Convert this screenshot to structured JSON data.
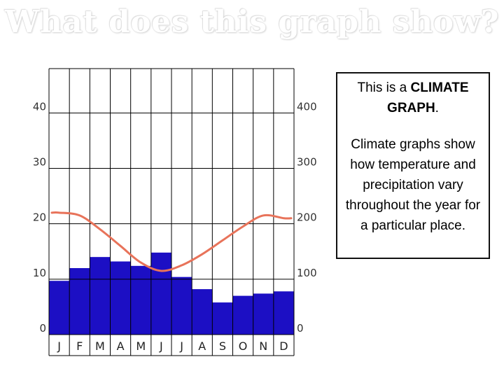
{
  "slide": {
    "title": "What does this graph show?"
  },
  "info_box": {
    "line1_prefix": "This is a ",
    "line1_bold": "CLIMATE GRAPH",
    "line1_suffix": ".",
    "paragraph2": "Climate graphs show how temperature and precipitation vary throughout the year for a particular place."
  },
  "colors": {
    "bar_fill": "#1c0fc4",
    "temperature_line": "#e8735a",
    "grid": "#000000"
  },
  "chart_data": {
    "type": "bar",
    "categories": [
      "J",
      "F",
      "M",
      "A",
      "M",
      "J",
      "J",
      "A",
      "S",
      "O",
      "N",
      "D"
    ],
    "left_axis": {
      "ticks": [
        "0",
        "10",
        "20",
        "30",
        "40"
      ],
      "ylim": [
        0,
        48
      ]
    },
    "right_axis": {
      "ticks": [
        "0",
        "100",
        "200",
        "300",
        "400"
      ],
      "ylim": [
        0,
        480
      ]
    },
    "series": [
      {
        "kind": "bar",
        "axis": "right",
        "values": [
          97,
          120,
          140,
          132,
          124,
          148,
          104,
          82,
          58,
          70,
          74,
          78
        ]
      },
      {
        "kind": "line",
        "axis": "left",
        "values": [
          22,
          21.5,
          19,
          16,
          13,
          11.5,
          12.5,
          14.5,
          17,
          19.5,
          21.5,
          21
        ]
      }
    ],
    "grid": true
  }
}
